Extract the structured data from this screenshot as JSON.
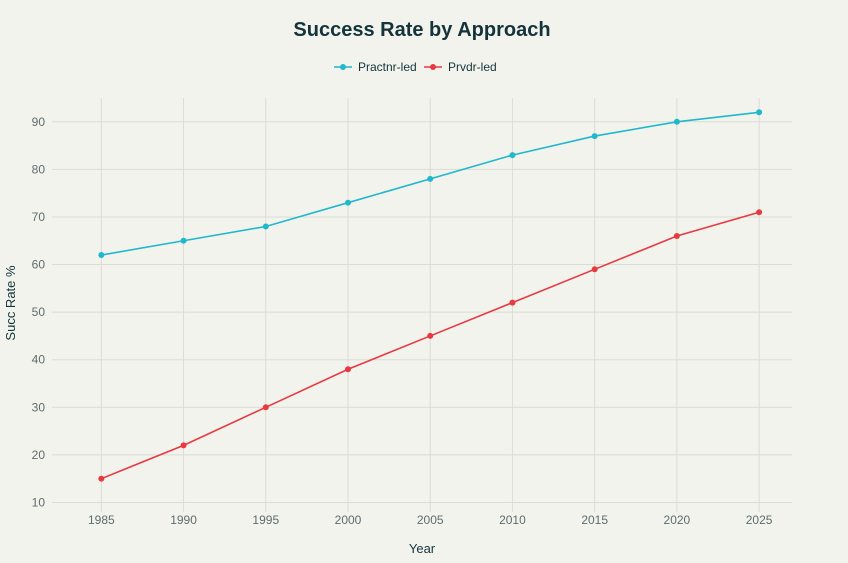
{
  "chart_data": {
    "type": "line",
    "title": "Success Rate by Approach",
    "xlabel": "Year",
    "ylabel": "Succ Rate %",
    "x": [
      1985,
      1990,
      1995,
      2000,
      2005,
      2010,
      2015,
      2020,
      2025
    ],
    "x_ticks": [
      "1985",
      "1990",
      "1995",
      "2000",
      "2005",
      "2010",
      "2015",
      "2020",
      "2025"
    ],
    "y_ticks": [
      "10",
      "20",
      "30",
      "40",
      "50",
      "60",
      "70",
      "80",
      "90"
    ],
    "xlim": [
      1982,
      2027
    ],
    "ylim": [
      8,
      95
    ],
    "grid": true,
    "legend_position": "top-center",
    "series": [
      {
        "name": "Practnr-led",
        "color": "#1fb8cd",
        "values": [
          62,
          65,
          68,
          73,
          78,
          83,
          87,
          90,
          92
        ]
      },
      {
        "name": "Prvdr-led",
        "color": "#e8393f",
        "values": [
          15,
          22,
          30,
          38,
          45,
          52,
          59,
          66,
          71
        ]
      }
    ]
  }
}
